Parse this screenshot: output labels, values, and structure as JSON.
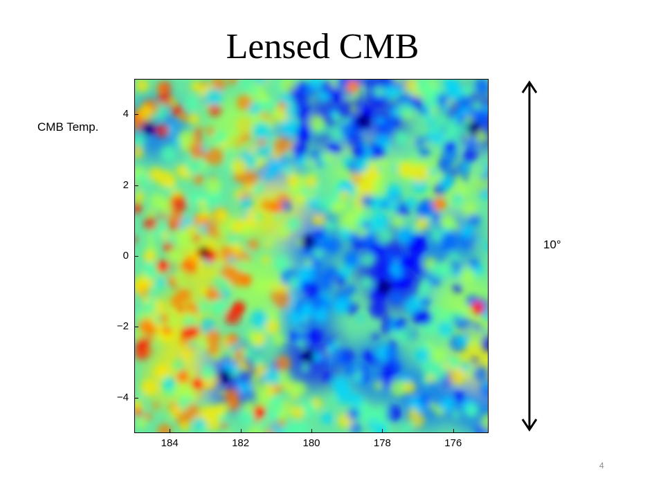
{
  "slide": {
    "title": "Lensed CMB",
    "side_label": "CMB Temp.",
    "scale_label": "10°",
    "page_number": "4"
  },
  "map": {
    "colormap": "jet",
    "x_ticks": [
      "184",
      "182",
      "180",
      "178",
      "176"
    ],
    "y_ticks": [
      "4",
      "2",
      "0",
      "−2",
      "−4"
    ],
    "xlim": [
      185,
      175
    ],
    "ylim": [
      -5,
      5
    ]
  },
  "colors": {
    "background": "#ffffff",
    "text": "#000000",
    "page_number": "#888888"
  }
}
